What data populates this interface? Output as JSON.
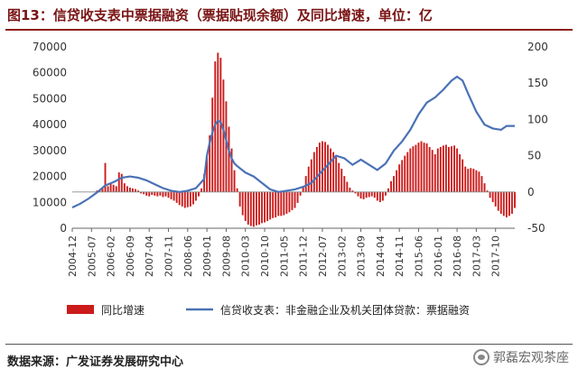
{
  "header": {
    "title": "图13：信贷收支表中票据融资（票据贴现余额）及同比增速，单位：亿"
  },
  "footer": {
    "source": "数据来源：广发证券发展研究中心",
    "watermark": "郭磊宏观茶座",
    "watermark_icon": "wechat-icon"
  },
  "colors": {
    "bar": "#cc1b1b",
    "line": "#4a72b5",
    "title": "#7a1414"
  },
  "chart_data": {
    "type": "bar+line",
    "title": "图13：信贷收支表中票据融资（票据贴现余额）及同比增速，单位：亿",
    "x_ticks": [
      "2004-12",
      "2005-07",
      "2006-02",
      "2006-09",
      "2007-04",
      "2007-11",
      "2008-06",
      "2009-01",
      "2009-08",
      "2010-03",
      "2010-10",
      "2011-05",
      "2011-12",
      "2012-07",
      "2013-02",
      "2013-09",
      "2014-04",
      "2014-11",
      "2015-06",
      "2016-01",
      "2016-08",
      "2017-03",
      "2017-10"
    ],
    "x_range": [
      "2004-12",
      "2018-05"
    ],
    "y_left": {
      "min": 0,
      "max": 70000,
      "ticks": [
        0,
        10000,
        20000,
        30000,
        40000,
        50000,
        60000,
        70000
      ]
    },
    "y_right": {
      "min": -50,
      "max": 200,
      "ticks": [
        -50,
        0,
        50,
        100,
        150,
        200
      ]
    },
    "legend_position": "bottom",
    "grid": false,
    "series": [
      {
        "name": "同比增速",
        "type": "bar",
        "axis": "right",
        "points": [
          [
            "2005-09",
            2
          ],
          [
            "2005-10",
            3
          ],
          [
            "2005-11",
            5
          ],
          [
            "2005-12",
            40
          ],
          [
            "2006-01",
            8
          ],
          [
            "2006-02",
            12
          ],
          [
            "2006-03",
            10
          ],
          [
            "2006-04",
            8
          ],
          [
            "2006-05",
            27
          ],
          [
            "2006-06",
            25
          ],
          [
            "2006-07",
            12
          ],
          [
            "2006-08",
            8
          ],
          [
            "2006-09",
            6
          ],
          [
            "2006-10",
            5
          ],
          [
            "2006-11",
            4
          ],
          [
            "2006-12",
            2
          ],
          [
            "2007-01",
            -2
          ],
          [
            "2007-02",
            -3
          ],
          [
            "2007-03",
            -5
          ],
          [
            "2007-04",
            -6
          ],
          [
            "2007-05",
            -4
          ],
          [
            "2007-06",
            -5
          ],
          [
            "2007-07",
            -6
          ],
          [
            "2007-08",
            -5
          ],
          [
            "2007-09",
            -7
          ],
          [
            "2007-10",
            -6
          ],
          [
            "2007-11",
            -8
          ],
          [
            "2007-12",
            -10
          ],
          [
            "2008-01",
            -12
          ],
          [
            "2008-02",
            -15
          ],
          [
            "2008-03",
            -18
          ],
          [
            "2008-04",
            -20
          ],
          [
            "2008-05",
            -22
          ],
          [
            "2008-06",
            -21
          ],
          [
            "2008-07",
            -20
          ],
          [
            "2008-08",
            -17
          ],
          [
            "2008-09",
            -12
          ],
          [
            "2008-10",
            -6
          ],
          [
            "2008-11",
            5
          ],
          [
            "2008-12",
            25
          ],
          [
            "2009-01",
            48
          ],
          [
            "2009-02",
            78
          ],
          [
            "2009-03",
            130
          ],
          [
            "2009-04",
            180
          ],
          [
            "2009-05",
            192
          ],
          [
            "2009-06",
            185
          ],
          [
            "2009-07",
            155
          ],
          [
            "2009-08",
            125
          ],
          [
            "2009-09",
            90
          ],
          [
            "2009-10",
            60
          ],
          [
            "2009-11",
            30
          ],
          [
            "2009-12",
            5
          ],
          [
            "2010-01",
            -20
          ],
          [
            "2010-02",
            -32
          ],
          [
            "2010-03",
            -40
          ],
          [
            "2010-04",
            -45
          ],
          [
            "2010-05",
            -47
          ],
          [
            "2010-06",
            -48
          ],
          [
            "2010-07",
            -46
          ],
          [
            "2010-08",
            -45
          ],
          [
            "2010-09",
            -43
          ],
          [
            "2010-10",
            -42
          ],
          [
            "2010-11",
            -40
          ],
          [
            "2010-12",
            -38
          ],
          [
            "2011-01",
            -36
          ],
          [
            "2011-02",
            -35
          ],
          [
            "2011-03",
            -33
          ],
          [
            "2011-04",
            -33
          ],
          [
            "2011-05",
            -32
          ],
          [
            "2011-06",
            -30
          ],
          [
            "2011-07",
            -28
          ],
          [
            "2011-08",
            -25
          ],
          [
            "2011-09",
            -22
          ],
          [
            "2011-10",
            -15
          ],
          [
            "2011-11",
            -5
          ],
          [
            "2011-12",
            8
          ],
          [
            "2012-01",
            22
          ],
          [
            "2012-02",
            35
          ],
          [
            "2012-03",
            45
          ],
          [
            "2012-04",
            55
          ],
          [
            "2012-05",
            62
          ],
          [
            "2012-06",
            68
          ],
          [
            "2012-07",
            70
          ],
          [
            "2012-08",
            69
          ],
          [
            "2012-09",
            65
          ],
          [
            "2012-10",
            60
          ],
          [
            "2012-11",
            55
          ],
          [
            "2012-12",
            48
          ],
          [
            "2013-01",
            40
          ],
          [
            "2013-02",
            32
          ],
          [
            "2013-03",
            22
          ],
          [
            "2013-04",
            14
          ],
          [
            "2013-05",
            6
          ],
          [
            "2013-06",
            2
          ],
          [
            "2013-07",
            -2
          ],
          [
            "2013-08",
            -6
          ],
          [
            "2013-09",
            -9
          ],
          [
            "2013-10",
            -10
          ],
          [
            "2013-11",
            -8
          ],
          [
            "2013-12",
            -7
          ],
          [
            "2014-01",
            -6
          ],
          [
            "2014-02",
            -8
          ],
          [
            "2014-03",
            -12
          ],
          [
            "2014-04",
            -14
          ],
          [
            "2014-05",
            -12
          ],
          [
            "2014-06",
            -5
          ],
          [
            "2014-07",
            5
          ],
          [
            "2014-08",
            15
          ],
          [
            "2014-09",
            22
          ],
          [
            "2014-10",
            30
          ],
          [
            "2014-11",
            38
          ],
          [
            "2014-12",
            44
          ],
          [
            "2015-01",
            50
          ],
          [
            "2015-02",
            55
          ],
          [
            "2015-03",
            60
          ],
          [
            "2015-04",
            63
          ],
          [
            "2015-05",
            65
          ],
          [
            "2015-06",
            68
          ],
          [
            "2015-07",
            70
          ],
          [
            "2015-08",
            68
          ],
          [
            "2015-09",
            67
          ],
          [
            "2015-10",
            62
          ],
          [
            "2015-11",
            58
          ],
          [
            "2015-12",
            52
          ],
          [
            "2016-01",
            60
          ],
          [
            "2016-02",
            62
          ],
          [
            "2016-03",
            64
          ],
          [
            "2016-04",
            65
          ],
          [
            "2016-05",
            62
          ],
          [
            "2016-06",
            63
          ],
          [
            "2016-07",
            64
          ],
          [
            "2016-08",
            60
          ],
          [
            "2016-09",
            52
          ],
          [
            "2016-10",
            45
          ],
          [
            "2016-11",
            35
          ],
          [
            "2016-12",
            32
          ],
          [
            "2017-01",
            33
          ],
          [
            "2017-02",
            32
          ],
          [
            "2017-03",
            30
          ],
          [
            "2017-04",
            28
          ],
          [
            "2017-05",
            22
          ],
          [
            "2017-06",
            12
          ],
          [
            "2017-07",
            2
          ],
          [
            "2017-08",
            -8
          ],
          [
            "2017-09",
            -14
          ],
          [
            "2017-10",
            -20
          ],
          [
            "2017-11",
            -26
          ],
          [
            "2017-12",
            -30
          ],
          [
            "2018-01",
            -33
          ],
          [
            "2018-02",
            -35
          ],
          [
            "2018-03",
            -33
          ],
          [
            "2018-04",
            -30
          ],
          [
            "2018-05",
            -22
          ]
        ]
      },
      {
        "name": "信贷收支表：非金融企业及机关团体贷款：票据融资",
        "type": "line",
        "axis": "left",
        "points": [
          [
            "2004-12",
            8000
          ],
          [
            "2005-03",
            9500
          ],
          [
            "2005-06",
            11500
          ],
          [
            "2005-09",
            13800
          ],
          [
            "2005-12",
            16500
          ],
          [
            "2006-03",
            17800
          ],
          [
            "2006-06",
            19500
          ],
          [
            "2006-09",
            20000
          ],
          [
            "2006-12",
            19500
          ],
          [
            "2007-03",
            18500
          ],
          [
            "2007-06",
            17000
          ],
          [
            "2007-09",
            15500
          ],
          [
            "2007-12",
            14500
          ],
          [
            "2008-03",
            14000
          ],
          [
            "2008-06",
            14500
          ],
          [
            "2008-09",
            15500
          ],
          [
            "2008-12",
            19000
          ],
          [
            "2009-01",
            28000
          ],
          [
            "2009-02",
            33000
          ],
          [
            "2009-03",
            37000
          ],
          [
            "2009-04",
            40000
          ],
          [
            "2009-05",
            41500
          ],
          [
            "2009-06",
            41000
          ],
          [
            "2009-07",
            38000
          ],
          [
            "2009-08",
            34000
          ],
          [
            "2009-09",
            30000
          ],
          [
            "2009-10",
            27000
          ],
          [
            "2009-11",
            25000
          ],
          [
            "2009-12",
            24000
          ],
          [
            "2010-03",
            21500
          ],
          [
            "2010-06",
            20000
          ],
          [
            "2010-09",
            17500
          ],
          [
            "2010-12",
            15000
          ],
          [
            "2011-03",
            14000
          ],
          [
            "2011-06",
            14500
          ],
          [
            "2011-09",
            15000
          ],
          [
            "2011-12",
            16000
          ],
          [
            "2012-03",
            17500
          ],
          [
            "2012-06",
            21000
          ],
          [
            "2012-09",
            24500
          ],
          [
            "2012-12",
            28000
          ],
          [
            "2013-03",
            27000
          ],
          [
            "2013-06",
            24500
          ],
          [
            "2013-09",
            26500
          ],
          [
            "2013-12",
            24500
          ],
          [
            "2014-03",
            22500
          ],
          [
            "2014-06",
            25000
          ],
          [
            "2014-09",
            30000
          ],
          [
            "2014-12",
            33500
          ],
          [
            "2015-03",
            38000
          ],
          [
            "2015-06",
            44000
          ],
          [
            "2015-09",
            48500
          ],
          [
            "2015-12",
            50500
          ],
          [
            "2016-03",
            53500
          ],
          [
            "2016-06",
            57000
          ],
          [
            "2016-08",
            58500
          ],
          [
            "2016-10",
            57000
          ],
          [
            "2016-12",
            52000
          ],
          [
            "2017-03",
            45000
          ],
          [
            "2017-06",
            40000
          ],
          [
            "2017-09",
            38500
          ],
          [
            "2017-12",
            38000
          ],
          [
            "2018-02",
            39500
          ],
          [
            "2018-05",
            39500
          ]
        ]
      }
    ]
  }
}
